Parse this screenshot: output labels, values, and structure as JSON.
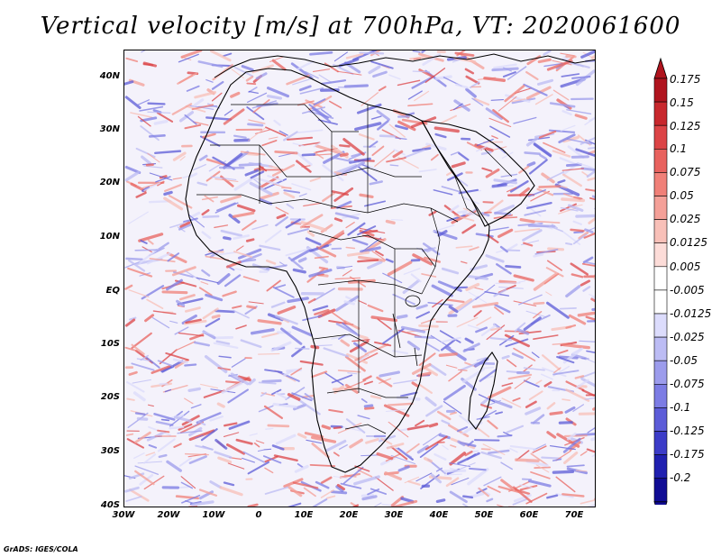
{
  "title": "Vertical velocity [m/s] at 700hPa, VT: 2020061600",
  "credit": "GrADS: IGES/COLA",
  "map": {
    "region": "Africa",
    "variable": "Vertical velocity",
    "units": "m/s",
    "level": "700hPa",
    "valid_time": "2020061600",
    "lon_range": [
      -30,
      75
    ],
    "lat_range": [
      -40,
      45
    ],
    "lat_labels": [
      "40N",
      "30N",
      "20N",
      "10N",
      "EQ",
      "10S",
      "20S",
      "30S",
      "40S"
    ],
    "lat_values": [
      40,
      30,
      20,
      10,
      0,
      -10,
      -20,
      -30,
      -40
    ],
    "lon_labels": [
      "30W",
      "20W",
      "10W",
      "0",
      "10E",
      "20E",
      "30E",
      "40E",
      "50E",
      "60E",
      "70E"
    ],
    "lon_values": [
      -30,
      -20,
      -10,
      0,
      10,
      20,
      30,
      40,
      50,
      60,
      70
    ]
  },
  "colorbar": {
    "labels": [
      "0.175",
      "0.15",
      "0.125",
      "0.1",
      "0.075",
      "0.05",
      "0.025",
      "0.0125",
      "0.005",
      "-0.005",
      "-0.0125",
      "-0.025",
      "-0.05",
      "-0.075",
      "-0.1",
      "-0.125",
      "-0.175",
      "-0.2"
    ],
    "colors": [
      "#b0141e",
      "#c8282d",
      "#dc4446",
      "#e8625e",
      "#f08078",
      "#f4a098",
      "#f8c0b8",
      "#fcdcd8",
      "#ffffff",
      "#ffffff",
      "#dcdcfc",
      "#bcbcf4",
      "#9c9cec",
      "#7c7ce4",
      "#5c5cd8",
      "#3c3cc8",
      "#2020b0",
      "#100c94"
    ]
  }
}
